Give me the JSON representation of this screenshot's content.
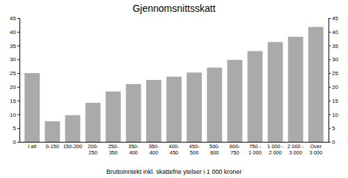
{
  "chart_data": {
    "type": "bar",
    "title": "Gjennomsnittsskatt",
    "xlabel": "Bruttoinntekt inkl. skattefrie ytelser i 1 000 kroner",
    "categories": [
      "I alt",
      "0-150",
      "150-200",
      "200-\n250",
      "250-\n350",
      "350-\n400",
      "350-\n400",
      "400-\n450",
      "450-\n500",
      "500-\n600",
      "600-\n750",
      "750 -\n1 000",
      "1 000 -\n2 000",
      "2 000 -\n3 000",
      "Over\n3 000"
    ],
    "values": [
      25.0,
      7.5,
      9.7,
      14.2,
      18.3,
      21.0,
      22.5,
      23.7,
      25.2,
      27.0,
      29.8,
      33.0,
      36.3,
      38.2,
      41.8
    ],
    "color": "#aaaaaa",
    "ylim": [
      0,
      45
    ],
    "yticks": [
      0,
      5,
      10,
      15,
      20,
      25,
      30,
      35,
      40,
      45
    ],
    "y2lim": [
      0,
      45
    ],
    "y2ticks": [
      0,
      5,
      10,
      15,
      20,
      25,
      30,
      35,
      40,
      45
    ],
    "grid": false
  }
}
